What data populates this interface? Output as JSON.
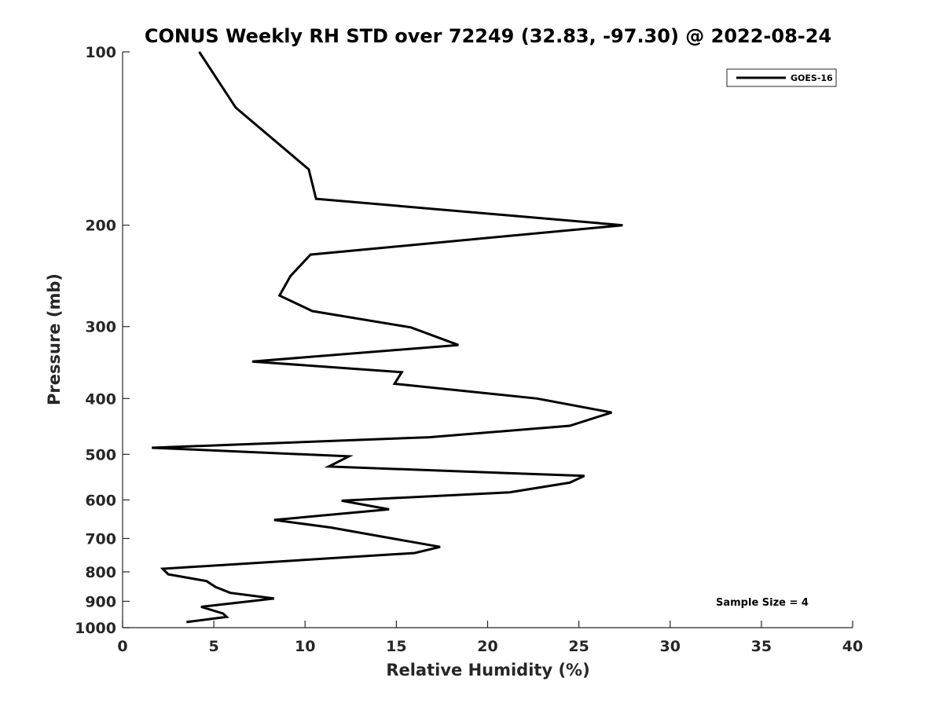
{
  "chart_data": {
    "type": "line",
    "title": "CONUS Weekly RH STD over 72249 (32.83, -97.30) @ 2022-08-24",
    "xlabel": "Relative Humidity (%)",
    "ylabel": "Pressure (mb)",
    "xlim": [
      0,
      40
    ],
    "ylim": [
      100,
      1000
    ],
    "y_scale": "log",
    "y_reversed": true,
    "x_ticks": [
      0,
      5,
      10,
      15,
      20,
      25,
      30,
      35,
      40
    ],
    "y_ticks": [
      100,
      200,
      300,
      400,
      500,
      600,
      700,
      800,
      900,
      1000
    ],
    "grid": false,
    "legend_position": "top-right",
    "annotation": "Sample Size = 4",
    "series": [
      {
        "name": "GOES-16",
        "color": "#000000",
        "points": [
          [
            4.2,
            100
          ],
          [
            6.2,
            125
          ],
          [
            10.2,
            160
          ],
          [
            10.6,
            180
          ],
          [
            27.4,
            200
          ],
          [
            10.3,
            225
          ],
          [
            9.2,
            245
          ],
          [
            8.6,
            265
          ],
          [
            10.4,
            282
          ],
          [
            15.8,
            301
          ],
          [
            18.4,
            323
          ],
          [
            7.1,
            345
          ],
          [
            15.3,
            360
          ],
          [
            14.9,
            377
          ],
          [
            22.7,
            400
          ],
          [
            26.8,
            423
          ],
          [
            24.5,
            446
          ],
          [
            16.8,
            467
          ],
          [
            1.6,
            487
          ],
          [
            12.4,
            504
          ],
          [
            11.3,
            525
          ],
          [
            25.3,
            545
          ],
          [
            24.5,
            560
          ],
          [
            21.2,
            582
          ],
          [
            12.0,
            602
          ],
          [
            14.6,
            623
          ],
          [
            8.3,
            650
          ],
          [
            11.4,
            670
          ],
          [
            15.0,
            702
          ],
          [
            17.4,
            724
          ],
          [
            16.0,
            742
          ],
          [
            2.2,
            790
          ],
          [
            2.5,
            808
          ],
          [
            4.6,
            830
          ],
          [
            5.1,
            850
          ],
          [
            5.9,
            870
          ],
          [
            8.3,
            890
          ],
          [
            4.3,
            920
          ],
          [
            5.5,
            945
          ],
          [
            5.7,
            958
          ],
          [
            3.5,
            978
          ]
        ]
      }
    ]
  }
}
